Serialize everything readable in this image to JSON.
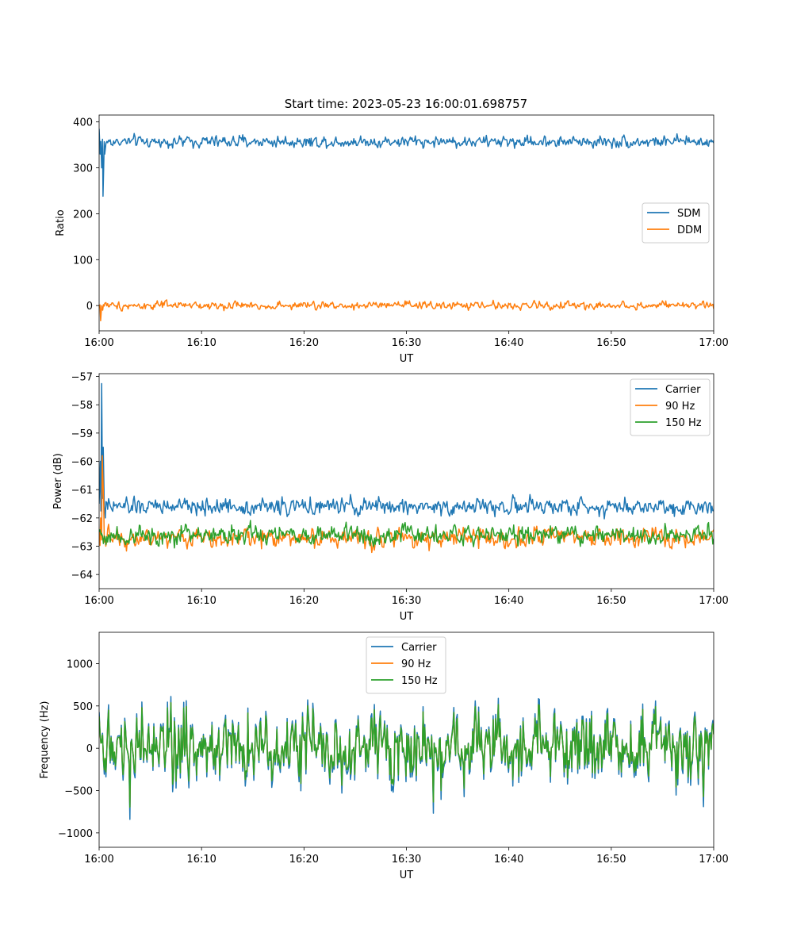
{
  "figure_title": "Start time: 2023-05-23 16:00:01.698757",
  "colors": {
    "blue": "#1f77b4",
    "orange": "#ff7f0e",
    "green": "#2ca02c"
  },
  "chart_data": [
    {
      "type": "line",
      "title": "Start time: 2023-05-23 16:00:01.698757",
      "xlabel": "UT",
      "ylabel": "Ratio",
      "x_ticks": [
        "16:00",
        "16:10",
        "16:20",
        "16:30",
        "16:40",
        "16:50",
        "17:00"
      ],
      "xlim_minutes": [
        0,
        60
      ],
      "ylim": [
        -55,
        415
      ],
      "y_ticks": [
        0,
        100,
        200,
        300,
        400
      ],
      "legend": {
        "placement": "center-right"
      },
      "series": [
        {
          "name": "SDM",
          "color": "#1f77b4",
          "base": 357,
          "noise": 13,
          "spikes": [
            [
              0.0,
              385
            ],
            [
              0.1,
              330
            ],
            [
              0.25,
              300
            ],
            [
              0.38,
              238
            ],
            [
              0.55,
              330
            ]
          ]
        },
        {
          "name": "DDM",
          "color": "#ff7f0e",
          "base": 0,
          "noise": 9,
          "spikes": [
            [
              0.0,
              -5
            ],
            [
              0.15,
              -33
            ],
            [
              0.35,
              -10
            ],
            [
              0.55,
              5
            ]
          ]
        }
      ]
    },
    {
      "type": "line",
      "title": "",
      "xlabel": "UT",
      "ylabel": "Power (dB)",
      "x_ticks": [
        "16:00",
        "16:10",
        "16:20",
        "16:30",
        "16:40",
        "16:50",
        "17:00"
      ],
      "xlim_minutes": [
        0,
        60
      ],
      "ylim": [
        -64.5,
        -56.9
      ],
      "y_ticks": [
        -64,
        -63,
        -62,
        -61,
        -60,
        -59,
        -58,
        -57
      ],
      "legend": {
        "placement": "top-right"
      },
      "series": [
        {
          "name": "Carrier",
          "color": "#1f77b4",
          "base": -61.6,
          "noise": 0.3,
          "spikes": [
            [
              0.0,
              -61.5
            ],
            [
              0.12,
              -60.0
            ],
            [
              0.25,
              -57.25
            ],
            [
              0.4,
              -59.5
            ],
            [
              0.6,
              -62.0
            ]
          ]
        },
        {
          "name": "90 Hz",
          "color": "#ff7f0e",
          "base": -62.7,
          "noise": 0.35,
          "spikes": [
            [
              0.0,
              -62.5
            ],
            [
              0.15,
              -62.0
            ],
            [
              0.3,
              -59.8
            ],
            [
              0.45,
              -61.5
            ],
            [
              0.65,
              -63.0
            ]
          ]
        },
        {
          "name": "150 Hz",
          "color": "#2ca02c",
          "base": -62.6,
          "noise": 0.35,
          "spikes": [
            [
              0.0,
              -62.5
            ],
            [
              0.2,
              -62.6
            ]
          ]
        }
      ]
    },
    {
      "type": "line",
      "title": "",
      "xlabel": "UT",
      "ylabel": "Frequency (Hz)",
      "x_ticks": [
        "16:00",
        "16:10",
        "16:20",
        "16:30",
        "16:40",
        "16:50",
        "17:00"
      ],
      "xlim_minutes": [
        0,
        60
      ],
      "ylim": [
        -1170,
        1370
      ],
      "y_ticks": [
        -1000,
        -500,
        0,
        500,
        1000
      ],
      "legend": {
        "placement": "upper-center"
      },
      "series": [
        {
          "name": "Carrier",
          "color": "#1f77b4",
          "base": 0,
          "noise": 380
        },
        {
          "name": "90 Hz",
          "color": "#ff7f0e",
          "base": 0,
          "noise": 360
        },
        {
          "name": "150 Hz",
          "color": "#2ca02c",
          "base": 0,
          "noise": 360
        }
      ]
    }
  ]
}
